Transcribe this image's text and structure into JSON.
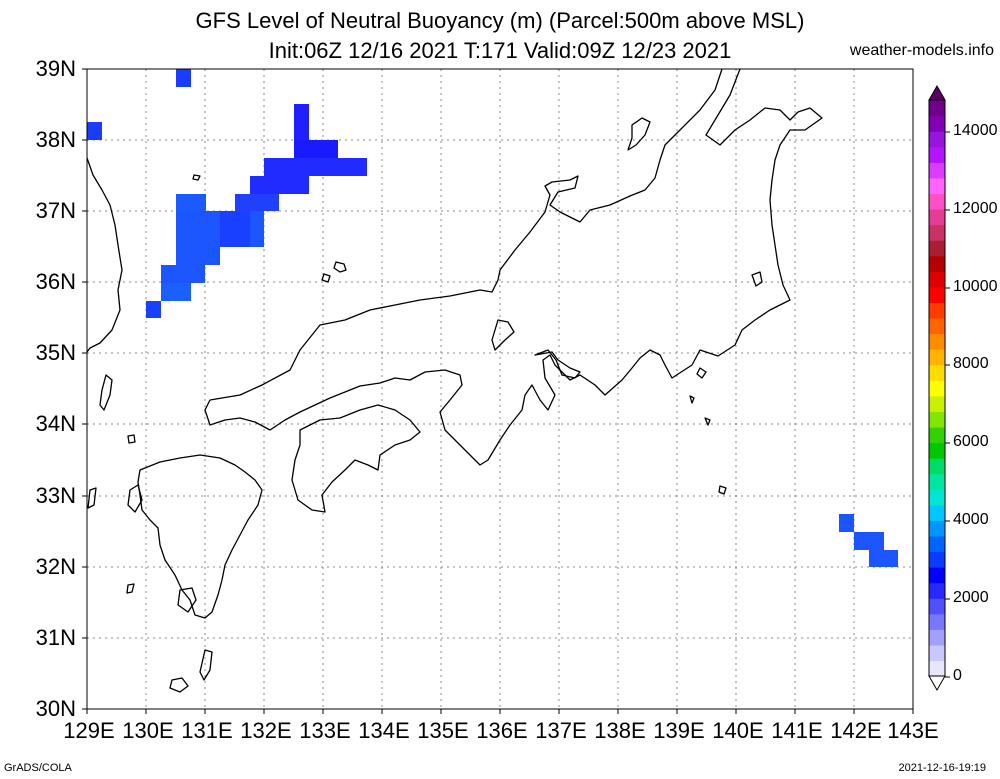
{
  "header": {
    "title_line1": "GFS Level of Neutral Buoyancy (m) (Parcel:500m above MSL)",
    "title_line2": "Init:06Z 12/16 2021 T:171 Valid:09Z 12/23 2021",
    "site": "weather-models.info"
  },
  "axes": {
    "lat_labels": [
      "39N",
      "38N",
      "37N",
      "36N",
      "35N",
      "34N",
      "33N",
      "32N",
      "31N",
      "30N"
    ],
    "lon_labels": [
      "129E",
      "130E",
      "131E",
      "132E",
      "133E",
      "134E",
      "135E",
      "136E",
      "137E",
      "138E",
      "139E",
      "140E",
      "141E",
      "142E",
      "143E"
    ]
  },
  "colorbar": {
    "labels": [
      "14000",
      "12000",
      "10000",
      "8000",
      "6000",
      "4000",
      "2000",
      "0"
    ],
    "colors": [
      "#e6e6ff",
      "#c8c8ff",
      "#a0a0ff",
      "#7878ff",
      "#5050ff",
      "#2828ff",
      "#0000ff",
      "#0a3cff",
      "#0064ff",
      "#0096ff",
      "#00c8ff",
      "#00e6d2",
      "#00e6a0",
      "#00dc64",
      "#00c800",
      "#32d200",
      "#82e600",
      "#c8f000",
      "#ffff00",
      "#ffdc00",
      "#ffb400",
      "#ff8c00",
      "#ff6400",
      "#ff3c00",
      "#ff0000",
      "#dc0000",
      "#b40000",
      "#aa1e32",
      "#c83264",
      "#e63c96",
      "#ff50c8",
      "#ff64ff",
      "#dc3cff",
      "#b414ff",
      "#9614dc",
      "#8200b4",
      "#6e008c"
    ]
  },
  "footer": {
    "left": "GrADS/COLA",
    "right": "2021-12-16-19:19"
  }
}
